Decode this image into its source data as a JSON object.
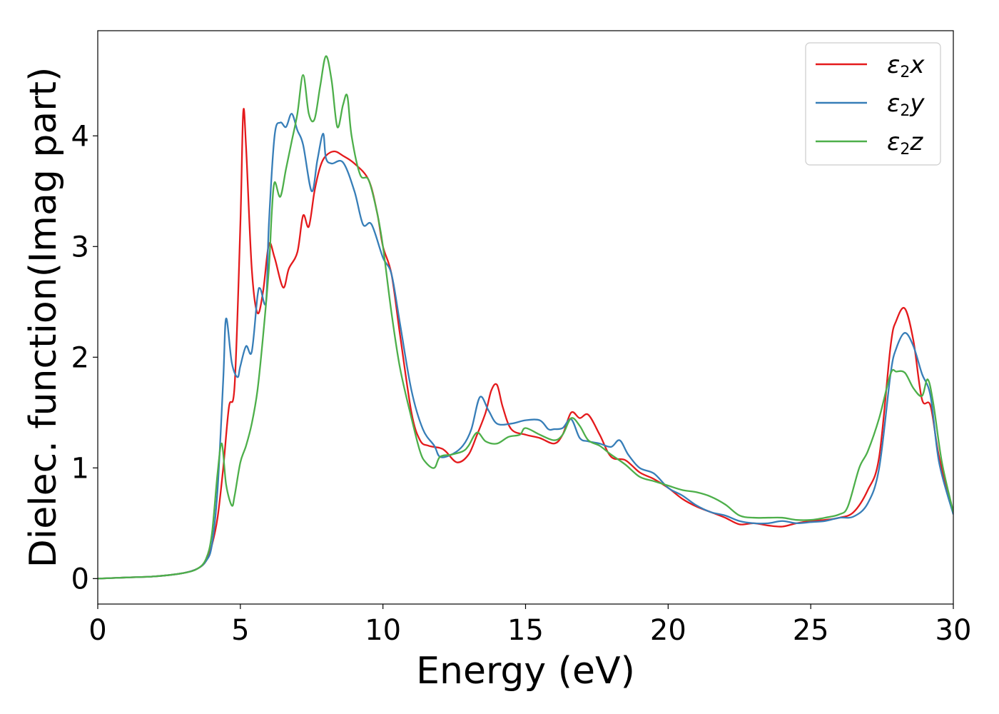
{
  "chart_data": {
    "type": "line",
    "xlabel": "Energy (eV)",
    "ylabel": "Dielec. function(Imag part)",
    "xlim": [
      0,
      30
    ],
    "ylim": [
      -0.23,
      4.95
    ],
    "xticks": [
      0,
      5,
      10,
      15,
      20,
      25,
      30
    ],
    "yticks": [
      0,
      1,
      2,
      3,
      4
    ],
    "grid": false,
    "legend_position": "top-right",
    "series": [
      {
        "name": "ε2x",
        "legend": {
          "base": "ε",
          "sub": "2",
          "rest": "x"
        },
        "color": "#e41a1c",
        "x": [
          0,
          1,
          2,
          3,
          3.5,
          3.8,
          4.0,
          4.2,
          4.4,
          4.6,
          4.8,
          5.0,
          5.1,
          5.2,
          5.4,
          5.6,
          5.8,
          6.0,
          6.2,
          6.5,
          6.7,
          7.0,
          7.2,
          7.4,
          7.6,
          7.8,
          8.0,
          8.3,
          8.6,
          9.0,
          9.5,
          9.8,
          10.0,
          10.3,
          10.6,
          11.0,
          11.3,
          11.6,
          12.0,
          12.2,
          12.6,
          13.0,
          13.3,
          13.6,
          13.8,
          14.0,
          14.2,
          14.5,
          15.0,
          15.5,
          16.0,
          16.3,
          16.6,
          16.9,
          17.2,
          17.6,
          18.0,
          18.5,
          19.0,
          19.5,
          20.0,
          20.5,
          21.0,
          21.5,
          22.0,
          22.5,
          23.0,
          23.5,
          24.0,
          24.5,
          25.0,
          25.5,
          26.0,
          26.5,
          27.0,
          27.4,
          27.8,
          28.0,
          28.3,
          28.6,
          28.9,
          29.2,
          29.5,
          30.0
        ],
        "values": [
          0,
          0.01,
          0.02,
          0.05,
          0.09,
          0.16,
          0.3,
          0.55,
          1.0,
          1.55,
          1.75,
          3.2,
          4.21,
          3.9,
          2.8,
          2.4,
          2.6,
          3.02,
          2.9,
          2.63,
          2.8,
          2.95,
          3.28,
          3.18,
          3.5,
          3.72,
          3.82,
          3.86,
          3.82,
          3.75,
          3.6,
          3.3,
          3.0,
          2.75,
          2.2,
          1.5,
          1.25,
          1.2,
          1.18,
          1.15,
          1.05,
          1.12,
          1.3,
          1.5,
          1.7,
          1.75,
          1.55,
          1.35,
          1.3,
          1.27,
          1.22,
          1.3,
          1.5,
          1.45,
          1.48,
          1.3,
          1.1,
          1.07,
          0.96,
          0.9,
          0.82,
          0.72,
          0.65,
          0.6,
          0.55,
          0.49,
          0.5,
          0.48,
          0.47,
          0.5,
          0.52,
          0.53,
          0.55,
          0.6,
          0.8,
          1.1,
          2.1,
          2.33,
          2.44,
          2.15,
          1.62,
          1.56,
          1.1,
          0.6
        ]
      },
      {
        "name": "ε2y",
        "legend": {
          "base": "ε",
          "sub": "2",
          "rest": "y"
        },
        "color": "#377eb8",
        "x": [
          0,
          1,
          2,
          3,
          3.5,
          3.8,
          4.0,
          4.2,
          4.4,
          4.5,
          4.7,
          4.9,
          5.0,
          5.2,
          5.4,
          5.6,
          5.7,
          5.9,
          6.0,
          6.2,
          6.4,
          6.6,
          6.8,
          7.0,
          7.2,
          7.5,
          7.7,
          7.9,
          8.0,
          8.2,
          8.6,
          9.0,
          9.3,
          9.6,
          10.0,
          10.3,
          10.6,
          11.0,
          11.4,
          11.8,
          12.0,
          12.4,
          12.8,
          13.1,
          13.4,
          13.7,
          14.0,
          14.5,
          15.0,
          15.5,
          15.8,
          16.0,
          16.3,
          16.6,
          16.9,
          17.2,
          17.6,
          18.0,
          18.3,
          18.6,
          19.0,
          19.5,
          20.0,
          20.5,
          21.0,
          21.5,
          22.0,
          22.5,
          23.0,
          23.5,
          24.0,
          24.5,
          25.0,
          25.5,
          26.0,
          26.5,
          27.0,
          27.4,
          27.8,
          28.0,
          28.3,
          28.6,
          28.9,
          29.2,
          29.5,
          30.0
        ],
        "values": [
          0,
          0.01,
          0.02,
          0.05,
          0.09,
          0.16,
          0.3,
          0.8,
          1.8,
          2.35,
          1.95,
          1.82,
          1.92,
          2.1,
          2.05,
          2.55,
          2.62,
          2.5,
          3.2,
          4.0,
          4.12,
          4.08,
          4.2,
          4.05,
          3.92,
          3.5,
          3.78,
          4.02,
          3.8,
          3.75,
          3.76,
          3.5,
          3.2,
          3.2,
          2.9,
          2.75,
          2.3,
          1.7,
          1.35,
          1.2,
          1.1,
          1.12,
          1.2,
          1.35,
          1.64,
          1.52,
          1.4,
          1.4,
          1.43,
          1.43,
          1.35,
          1.35,
          1.36,
          1.44,
          1.27,
          1.24,
          1.22,
          1.19,
          1.25,
          1.12,
          1.0,
          0.95,
          0.82,
          0.75,
          0.66,
          0.6,
          0.57,
          0.52,
          0.5,
          0.5,
          0.52,
          0.5,
          0.51,
          0.52,
          0.55,
          0.56,
          0.68,
          1.0,
          1.85,
          2.08,
          2.22,
          2.1,
          1.85,
          1.65,
          1.05,
          0.58
        ]
      },
      {
        "name": "ε2z",
        "legend": {
          "base": "ε",
          "sub": "2",
          "rest": "z"
        },
        "color": "#4daf4a",
        "x": [
          0,
          1,
          2,
          3,
          3.5,
          3.8,
          4.0,
          4.2,
          4.35,
          4.5,
          4.7,
          4.8,
          5.0,
          5.2,
          5.4,
          5.6,
          5.8,
          6.0,
          6.1,
          6.2,
          6.4,
          6.6,
          6.8,
          7.0,
          7.2,
          7.4,
          7.6,
          7.8,
          8.0,
          8.2,
          8.4,
          8.6,
          8.75,
          8.9,
          9.2,
          9.5,
          9.8,
          10.0,
          10.3,
          10.6,
          11.0,
          11.3,
          11.5,
          11.8,
          12.0,
          12.4,
          12.8,
          13.0,
          13.3,
          13.6,
          14.0,
          14.4,
          14.8,
          15.0,
          15.5,
          16.0,
          16.3,
          16.6,
          16.9,
          17.2,
          17.6,
          18.0,
          18.5,
          19.0,
          19.5,
          20.0,
          20.5,
          21.0,
          21.5,
          22.0,
          22.5,
          23.0,
          23.5,
          24.0,
          24.5,
          25.0,
          25.5,
          26.0,
          26.3,
          26.7,
          27.0,
          27.4,
          27.8,
          28.0,
          28.3,
          28.6,
          28.9,
          29.1,
          29.3,
          29.6,
          30.0
        ],
        "values": [
          0,
          0.01,
          0.02,
          0.05,
          0.09,
          0.18,
          0.4,
          0.95,
          1.22,
          0.85,
          0.66,
          0.75,
          1.05,
          1.2,
          1.4,
          1.7,
          2.2,
          2.8,
          3.3,
          3.58,
          3.45,
          3.7,
          3.95,
          4.2,
          4.55,
          4.2,
          4.15,
          4.45,
          4.72,
          4.5,
          4.08,
          4.28,
          4.36,
          4.0,
          3.65,
          3.6,
          3.3,
          3.0,
          2.4,
          1.9,
          1.45,
          1.15,
          1.05,
          1.0,
          1.1,
          1.12,
          1.15,
          1.2,
          1.32,
          1.24,
          1.22,
          1.28,
          1.3,
          1.36,
          1.3,
          1.25,
          1.3,
          1.45,
          1.38,
          1.25,
          1.2,
          1.12,
          1.03,
          0.92,
          0.88,
          0.84,
          0.8,
          0.78,
          0.74,
          0.67,
          0.57,
          0.55,
          0.55,
          0.55,
          0.53,
          0.53,
          0.55,
          0.58,
          0.65,
          1.0,
          1.15,
          1.45,
          1.85,
          1.87,
          1.86,
          1.72,
          1.65,
          1.8,
          1.58,
          1.05,
          0.6
        ]
      }
    ]
  }
}
